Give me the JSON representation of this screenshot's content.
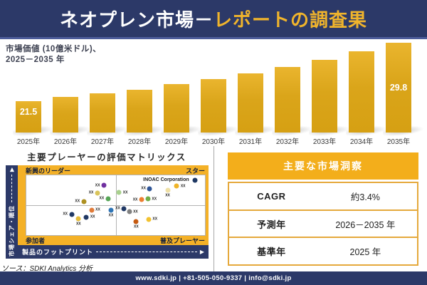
{
  "header": {
    "title_part1": "ネオプレン市場－",
    "title_part2": "レポートの調査果"
  },
  "chart_data": [
    {
      "type": "bar",
      "title": "市場価値 (10億米ドル)、2025－2035 年",
      "label_line1": "市場価値 (10億米ドル)、",
      "label_line2": "2025－2035 年",
      "categories": [
        "2025年",
        "2026年",
        "2027年",
        "2028年",
        "2029年",
        "2030年",
        "2031年",
        "2032年",
        "2033年",
        "2034年",
        "2035年"
      ],
      "values": [
        21.5,
        22.1,
        22.6,
        23.1,
        23.9,
        24.6,
        25.4,
        26.4,
        27.4,
        28.6,
        29.8
      ],
      "bar_labels": {
        "0": "21.5",
        "10": "29.8"
      },
      "ylabel": "10億米ドル",
      "bar_color": "#DAA51A"
    },
    {
      "type": "scatter",
      "title": "主要プレーヤーの評価マトリックス",
      "xlabel": "製品のフットプリント",
      "ylabel": "市場シェア・順位",
      "quadrants": {
        "top_left": "新興のリーダー",
        "top_right": "スター",
        "bottom_left": "参加者",
        "bottom_right": "普及プレーヤー"
      },
      "highlight_company": "INOAC Corporation",
      "points": [
        {
          "x": 43.4,
          "y": 17.1,
          "color": "#7030A0",
          "label": "XX",
          "side": "left"
        },
        {
          "x": 39.8,
          "y": 29.4,
          "color": "#D9C45B",
          "label": "XX",
          "side": "left"
        },
        {
          "x": 45.7,
          "y": 38.7,
          "color": "#56A556",
          "label": "XX",
          "side": "left"
        },
        {
          "x": 32.1,
          "y": 43.8,
          "color": "#AD9022",
          "label": "XX",
          "side": "left"
        },
        {
          "x": 36.5,
          "y": 58.1,
          "color": "#E07B39",
          "label": "XX",
          "side": "right"
        },
        {
          "x": 25.3,
          "y": 65.1,
          "color": "#1F3864",
          "label": "XX",
          "side": "left"
        },
        {
          "x": 33.6,
          "y": 69.8,
          "color": "#203864",
          "label": "XX",
          "side": "right"
        },
        {
          "x": 29.2,
          "y": 72.4,
          "color": "#E4BC3B",
          "label": "XX",
          "side": "below"
        },
        {
          "x": 47.4,
          "y": 58.1,
          "color": "#2E75B6",
          "label": "XX",
          "side": "below"
        },
        {
          "x": 94.5,
          "y": 7.8,
          "color": "#1F3864",
          "label": "INOAC Corporation",
          "side": "left",
          "major": true
        },
        {
          "x": 84.2,
          "y": 18.3,
          "color": "#EFB429",
          "label": "XX",
          "side": "right"
        },
        {
          "x": 79.1,
          "y": 25.2,
          "color": "#EFE0A5",
          "label": "XX",
          "side": "below"
        },
        {
          "x": 69.1,
          "y": 22.1,
          "color": "#2F5597",
          "label": "XX",
          "side": "left"
        },
        {
          "x": 51.9,
          "y": 29.1,
          "color": "#A8D08D",
          "label": "XX",
          "side": "right"
        },
        {
          "x": 64.5,
          "y": 40.7,
          "color": "#ED7D31",
          "label": "XX",
          "side": "left"
        },
        {
          "x": 68.1,
          "y": 39.5,
          "color": "#70AD47",
          "label": "XX",
          "side": "right"
        },
        {
          "x": 54.7,
          "y": 55.5,
          "color": "#203864",
          "label": "XX",
          "side": "left"
        },
        {
          "x": 57.6,
          "y": 60.8,
          "color": "#808080",
          "label": "XX",
          "side": "right"
        },
        {
          "x": 61.5,
          "y": 77.6,
          "color": "#C55A11",
          "label": "XX",
          "side": "below"
        },
        {
          "x": 68.5,
          "y": 73.6,
          "color": "#F2C230",
          "label": "XX",
          "side": "right"
        }
      ]
    }
  ],
  "icons": {
    "y_axis_arrow": "▶",
    "x_axis_arrow": "▶"
  },
  "source": "ソース：SDKI Analytics 分析",
  "insights": {
    "title": "主要な市場洞察",
    "rows": [
      {
        "label": "CAGR",
        "value": "約3.4%"
      },
      {
        "label": "予測年",
        "value": "2026－2035 年"
      },
      {
        "label": "基準年",
        "value": "2025 年"
      }
    ]
  },
  "footer": {
    "contact": "www.sdki.jp | +81-505-050-9337 | info@sdki.jp"
  },
  "colors": {
    "navy": "#2C3968",
    "gold_accent": "#F0B42C",
    "bar_gold": "#DAA51A",
    "panel_gold": "#F4B127",
    "header_gold": "#F3AE1B"
  }
}
